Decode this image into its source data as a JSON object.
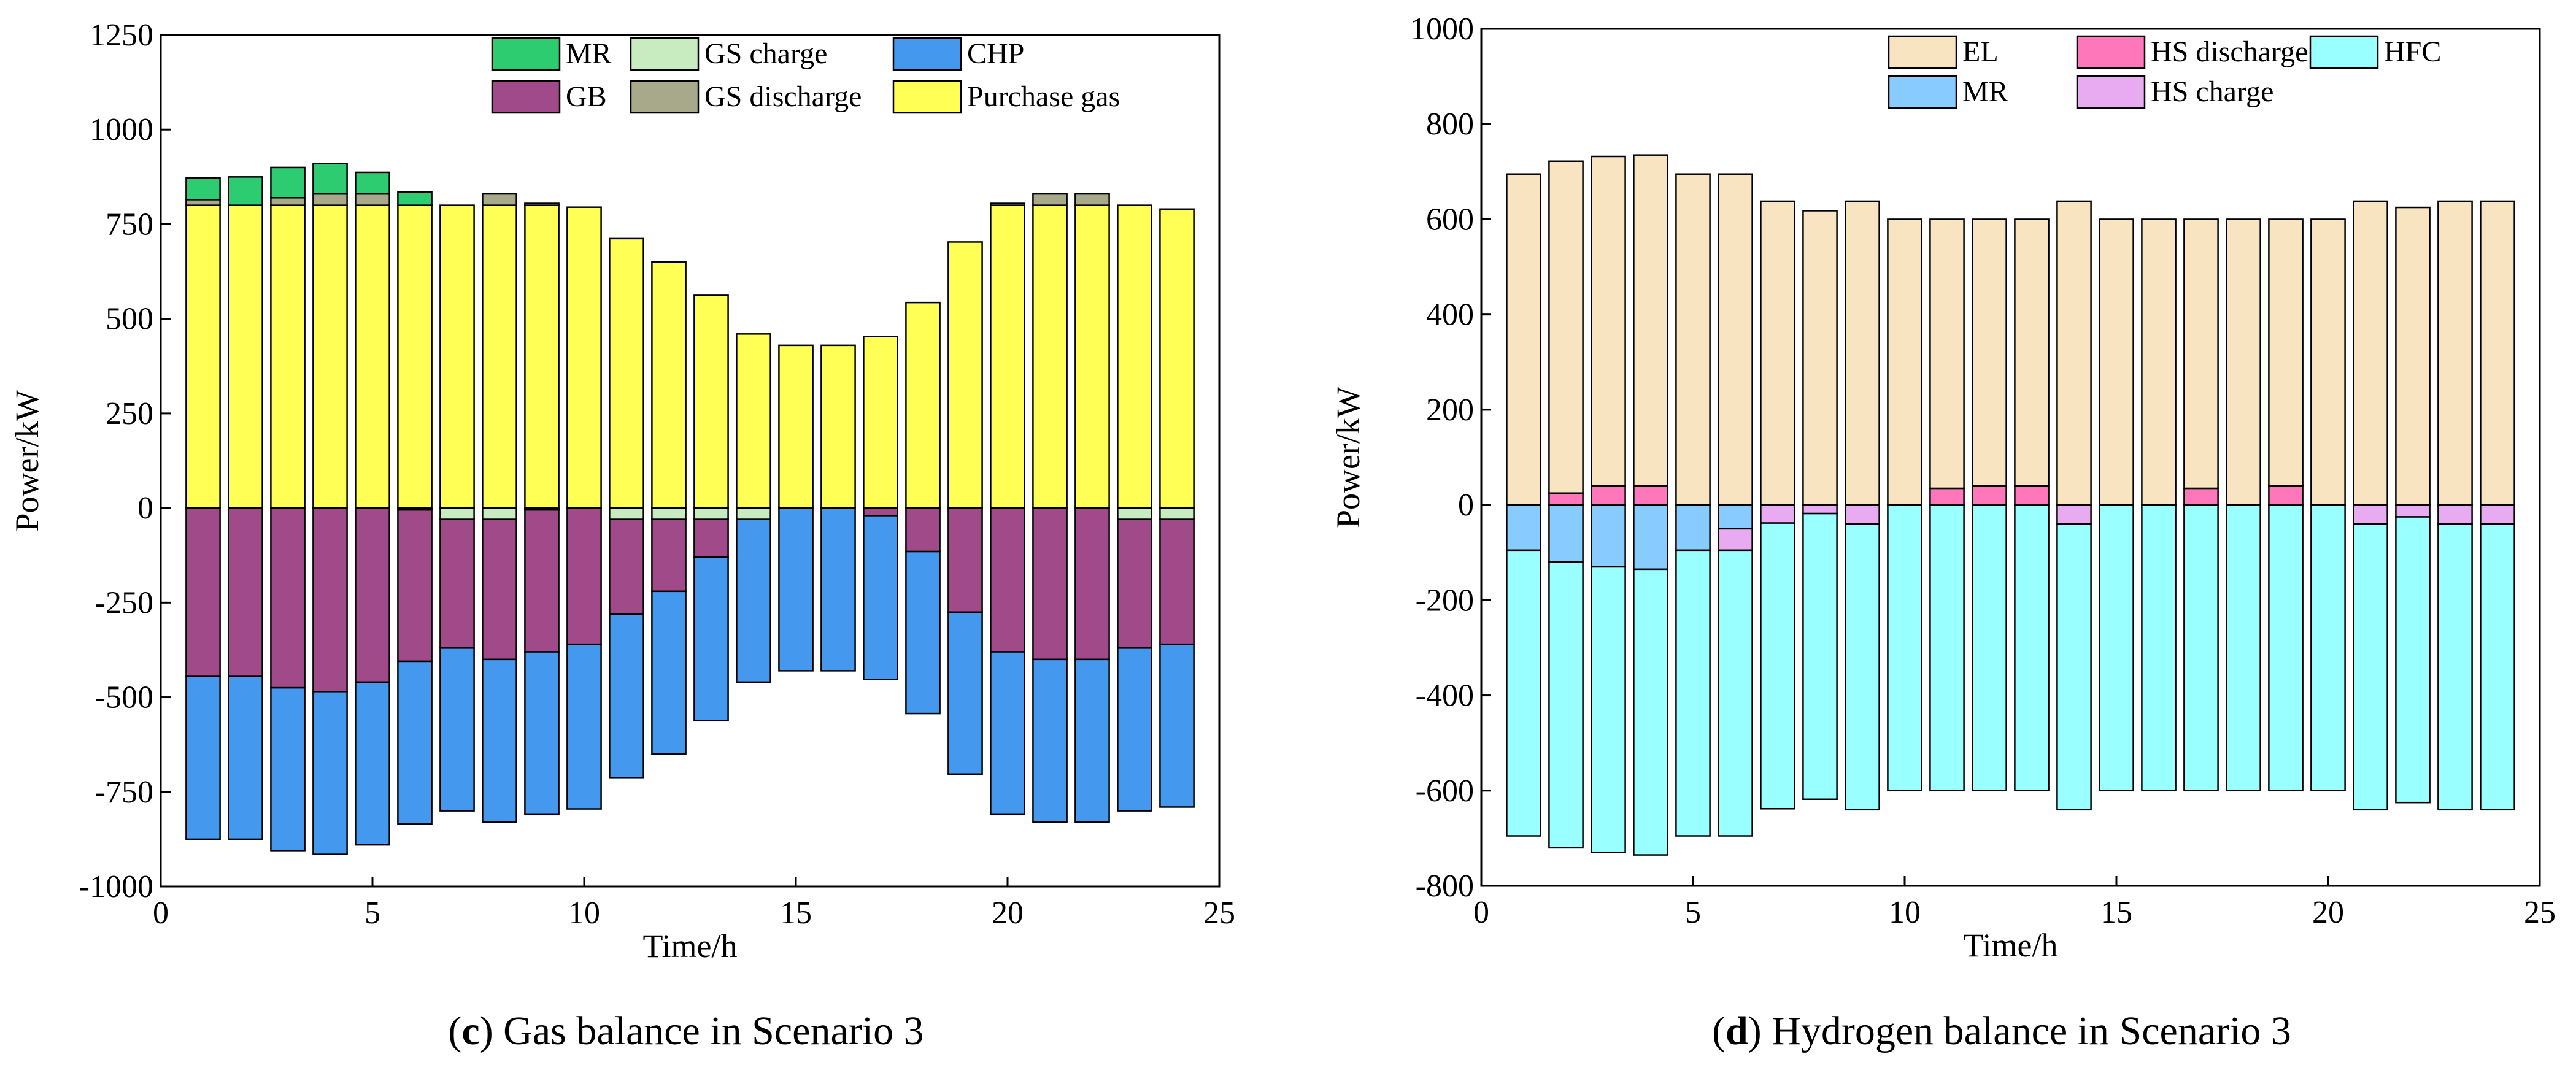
{
  "colors": {
    "MR_gas": "#2ecc71",
    "GS_charge": "#c8ecc0",
    "CHP": "#4499ee",
    "GB": "#a04a8a",
    "GS_discharge": "#a8a88a",
    "Purchase_gas": "#ffff55",
    "EL": "#f8e4c0",
    "HS_discharge": "#ff77bb",
    "HFC": "#99ffff",
    "MR_h2": "#88ccff",
    "HS_charge": "#e8aaf0"
  },
  "chart_data": [
    {
      "type": "bar",
      "stacked": true,
      "title": "",
      "caption": {
        "prefix": "(",
        "bold": "c",
        "suffix": ") Gas balance in Scenario 3"
      },
      "xlabel": "Time/h",
      "ylabel": "Power/kW",
      "xlim": [
        0,
        25
      ],
      "ylim": [
        -1000,
        1250
      ],
      "xticks": [
        "0",
        "5",
        "10",
        "15",
        "20",
        "25"
      ],
      "yticks": [
        "1250",
        "1000",
        "750",
        "500",
        "250",
        "0",
        "-250",
        "-500",
        "-750",
        "-1000"
      ],
      "x": [
        1,
        2,
        3,
        4,
        5,
        6,
        7,
        8,
        9,
        10,
        11,
        12,
        13,
        14,
        15,
        16,
        17,
        18,
        19,
        20,
        21,
        22,
        23,
        24
      ],
      "legend": [
        "MR",
        "GS charge",
        "CHP",
        "GB",
        "GS discharge",
        "Purchase gas"
      ],
      "series": [
        {
          "name": "Purchase gas",
          "color_key": "Purchase_gas",
          "values": [
            800,
            800,
            800,
            800,
            800,
            800,
            800,
            800,
            800,
            795,
            712,
            650,
            562,
            460,
            430,
            430,
            453,
            543,
            703,
            800,
            800,
            800,
            800,
            790
          ]
        },
        {
          "name": "GS discharge",
          "color_key": "GS_discharge",
          "values": [
            15,
            0,
            20,
            30,
            30,
            0,
            0,
            30,
            5,
            0,
            0,
            0,
            0,
            0,
            0,
            0,
            0,
            0,
            0,
            5,
            30,
            30,
            0,
            0
          ]
        },
        {
          "name": "MR",
          "color_key": "MR_gas",
          "values": [
            57,
            75,
            80,
            80,
            57,
            35,
            0,
            0,
            0,
            0,
            0,
            0,
            0,
            0,
            0,
            0,
            0,
            0,
            0,
            0,
            0,
            0,
            0,
            0
          ]
        },
        {
          "name": "GS charge",
          "color_key": "GS_charge",
          "values": [
            0,
            0,
            0,
            0,
            0,
            -5,
            -30,
            -30,
            -5,
            0,
            -30,
            -30,
            -30,
            -30,
            0,
            0,
            0,
            0,
            0,
            0,
            0,
            0,
            -30,
            -30
          ]
        },
        {
          "name": "GB",
          "color_key": "GB",
          "values": [
            -445,
            -445,
            -475,
            -485,
            -460,
            -400,
            -340,
            -370,
            -375,
            -360,
            -250,
            -190,
            -100,
            0,
            0,
            0,
            -20,
            -115,
            -275,
            -380,
            -400,
            -400,
            -340,
            -330
          ]
        },
        {
          "name": "CHP",
          "color_key": "CHP",
          "values": [
            -430,
            -430,
            -430,
            -430,
            -430,
            -430,
            -430,
            -430,
            -430,
            -435,
            -432,
            -430,
            -432,
            -430,
            -430,
            -430,
            -433,
            -428,
            -428,
            -430,
            -430,
            -430,
            -430,
            -430
          ]
        }
      ]
    },
    {
      "type": "bar",
      "stacked": true,
      "title": "",
      "caption": {
        "prefix": "(",
        "bold": "d",
        "suffix": ") Hydrogen balance in Scenario 3"
      },
      "xlabel": "Time/h",
      "ylabel": "Power/kW",
      "xlim": [
        0,
        25
      ],
      "ylim": [
        -800,
        1000
      ],
      "xticks": [
        "0",
        "5",
        "10",
        "15",
        "20",
        "25"
      ],
      "yticks": [
        "1000",
        "800",
        "600",
        "400",
        "200",
        "0",
        "-200",
        "-400",
        "-600",
        "-800"
      ],
      "x": [
        1,
        2,
        3,
        4,
        5,
        6,
        7,
        8,
        9,
        10,
        11,
        12,
        13,
        14,
        15,
        16,
        17,
        18,
        19,
        20,
        21,
        22,
        23,
        24
      ],
      "legend": [
        "EL",
        "HS discharge",
        "HFC",
        "MR",
        "HS charge"
      ],
      "series": [
        {
          "name": "HS discharge",
          "color_key": "HS_discharge",
          "values": [
            0,
            25,
            40,
            40,
            0,
            0,
            0,
            0,
            0,
            0,
            35,
            40,
            40,
            0,
            0,
            0,
            35,
            0,
            40,
            0,
            0,
            0,
            0,
            0
          ]
        },
        {
          "name": "EL",
          "color_key": "EL",
          "values": [
            695,
            697,
            692,
            695,
            695,
            695,
            638,
            618,
            638,
            600,
            565,
            560,
            560,
            638,
            600,
            600,
            565,
            600,
            560,
            600,
            638,
            625,
            638,
            638
          ]
        },
        {
          "name": "MR",
          "color_key": "MR_h2",
          "values": [
            -95,
            -120,
            -130,
            -135,
            -95,
            -50,
            0,
            0,
            0,
            0,
            0,
            0,
            0,
            0,
            0,
            0,
            0,
            0,
            0,
            0,
            0,
            0,
            0,
            0
          ]
        },
        {
          "name": "HS charge",
          "color_key": "HS_charge",
          "values": [
            0,
            0,
            0,
            0,
            0,
            -45,
            -38,
            -18,
            -40,
            0,
            0,
            0,
            0,
            -40,
            0,
            0,
            0,
            0,
            0,
            0,
            -40,
            -25,
            -40,
            -40
          ]
        },
        {
          "name": "HFC",
          "color_key": "HFC",
          "values": [
            -600,
            -600,
            -600,
            -600,
            -600,
            -600,
            -600,
            -600,
            -600,
            -600,
            -600,
            -600,
            -600,
            -600,
            -600,
            -600,
            -600,
            -600,
            -600,
            -600,
            -600,
            -600,
            -600,
            -600
          ]
        }
      ]
    }
  ]
}
